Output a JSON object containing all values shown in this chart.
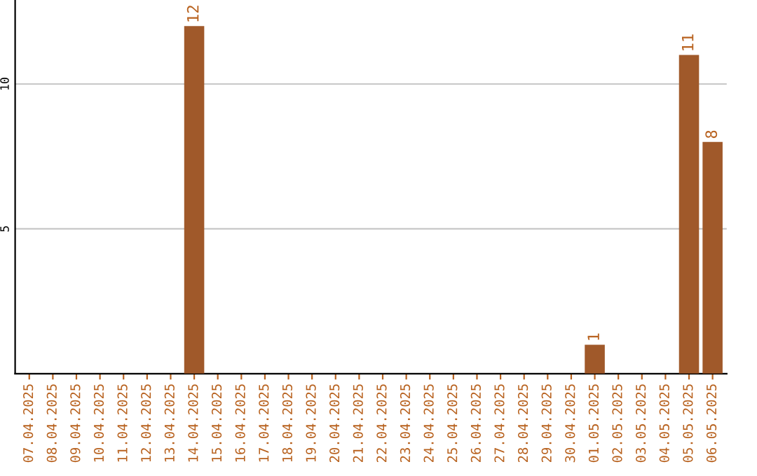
{
  "chart_data": {
    "type": "bar",
    "categories": [
      "07.04.2025",
      "08.04.2025",
      "09.04.2025",
      "10.04.2025",
      "11.04.2025",
      "12.04.2025",
      "13.04.2025",
      "14.04.2025",
      "15.04.2025",
      "16.04.2025",
      "17.04.2025",
      "18.04.2025",
      "19.04.2025",
      "20.04.2025",
      "21.04.2025",
      "22.04.2025",
      "23.04.2025",
      "24.04.2025",
      "25.04.2025",
      "26.04.2025",
      "27.04.2025",
      "28.04.2025",
      "29.04.2025",
      "30.04.2025",
      "01.05.2025",
      "02.05.2025",
      "03.05.2025",
      "04.05.2025",
      "05.05.2025",
      "06.05.2025"
    ],
    "values": [
      0,
      0,
      0,
      0,
      0,
      0,
      0,
      12,
      0,
      0,
      0,
      0,
      0,
      0,
      0,
      0,
      0,
      0,
      0,
      0,
      0,
      0,
      0,
      0,
      1,
      0,
      0,
      0,
      11,
      8
    ],
    "value_labels": [
      null,
      null,
      null,
      null,
      null,
      null,
      null,
      "12",
      null,
      null,
      null,
      null,
      null,
      null,
      null,
      null,
      null,
      null,
      null,
      null,
      null,
      null,
      null,
      null,
      "1",
      null,
      null,
      null,
      "11",
      "8"
    ],
    "color": "#a0592a",
    "ylim": [
      0,
      12.9
    ],
    "yticks": [
      5,
      10
    ],
    "grid": "y"
  }
}
